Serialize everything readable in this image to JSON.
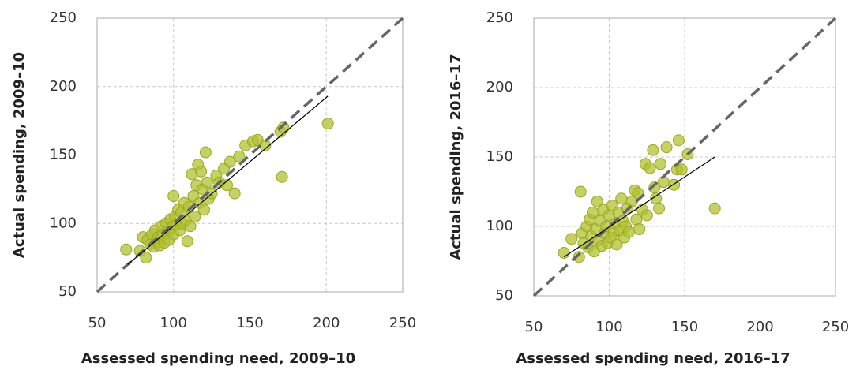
{
  "chart_data": [
    {
      "type": "scatter",
      "x_label": "Assessed spending need, 2009–10",
      "y_label": "Actual spending, 2009–10",
      "xlim": [
        50,
        250
      ],
      "ylim": [
        50,
        250
      ],
      "xticks": [
        50,
        100,
        150,
        200,
        250
      ],
      "yticks": [
        50,
        100,
        150,
        200,
        250
      ],
      "grid": true,
      "diagonal": true,
      "color": "#b2c032",
      "x": [
        69,
        78,
        80,
        82,
        83,
        85,
        86,
        87,
        88,
        89,
        90,
        91,
        92,
        93,
        94,
        95,
        96,
        97,
        98,
        99,
        100,
        100,
        101,
        102,
        103,
        104,
        105,
        106,
        107,
        108,
        109,
        110,
        111,
        112,
        113,
        114,
        115,
        116,
        117,
        118,
        119,
        120,
        121,
        122,
        123,
        125,
        128,
        130,
        133,
        135,
        137,
        140,
        143,
        147,
        152,
        155,
        160,
        170,
        172,
        171,
        201
      ],
      "values": [
        81,
        80,
        90,
        75,
        88,
        85,
        92,
        83,
        95,
        87,
        90,
        84,
        98,
        92,
        86,
        100,
        94,
        88,
        103,
        97,
        120,
        92,
        105,
        99,
        110,
        95,
        108,
        100,
        115,
        102,
        87,
        112,
        98,
        136,
        120,
        105,
        128,
        143,
        115,
        138,
        125,
        110,
        152,
        130,
        118,
        122,
        135,
        130,
        140,
        128,
        145,
        122,
        149,
        157,
        160,
        161,
        157,
        167,
        170,
        134,
        173
      ],
      "trend_line": {
        "x": [
          70,
          201
        ],
        "y": [
          70,
          193
        ]
      }
    },
    {
      "type": "scatter",
      "x_label": "Assessed spending need, 2016–17",
      "y_label": "Actual spending, 2016–17",
      "xlim": [
        50,
        250
      ],
      "ylim": [
        50,
        250
      ],
      "xticks": [
        50,
        100,
        150,
        200,
        250
      ],
      "yticks": [
        50,
        100,
        150,
        200,
        250
      ],
      "grid": true,
      "diagonal": true,
      "color": "#b2c032",
      "x": [
        70,
        75,
        80,
        81,
        82,
        83,
        85,
        86,
        87,
        88,
        89,
        90,
        91,
        92,
        93,
        94,
        95,
        96,
        97,
        98,
        99,
        100,
        101,
        102,
        103,
        104,
        105,
        106,
        107,
        108,
        109,
        110,
        111,
        112,
        113,
        115,
        117,
        118,
        119,
        120,
        122,
        124,
        125,
        127,
        129,
        130,
        131,
        133,
        134,
        136,
        138,
        143,
        145,
        146,
        148,
        152,
        170
      ],
      "values": [
        81,
        91,
        78,
        125,
        95,
        88,
        100,
        85,
        105,
        93,
        110,
        82,
        98,
        118,
        90,
        104,
        86,
        112,
        95,
        100,
        88,
        108,
        92,
        115,
        96,
        102,
        87,
        110,
        97,
        120,
        104,
        92,
        100,
        113,
        96,
        118,
        126,
        105,
        124,
        98,
        112,
        145,
        108,
        142,
        155,
        128,
        120,
        113,
        145,
        132,
        157,
        130,
        141,
        162,
        141,
        152,
        113
      ],
      "trend_line": {
        "x": [
          70,
          170
        ],
        "y": [
          78,
          150
        ]
      }
    }
  ]
}
